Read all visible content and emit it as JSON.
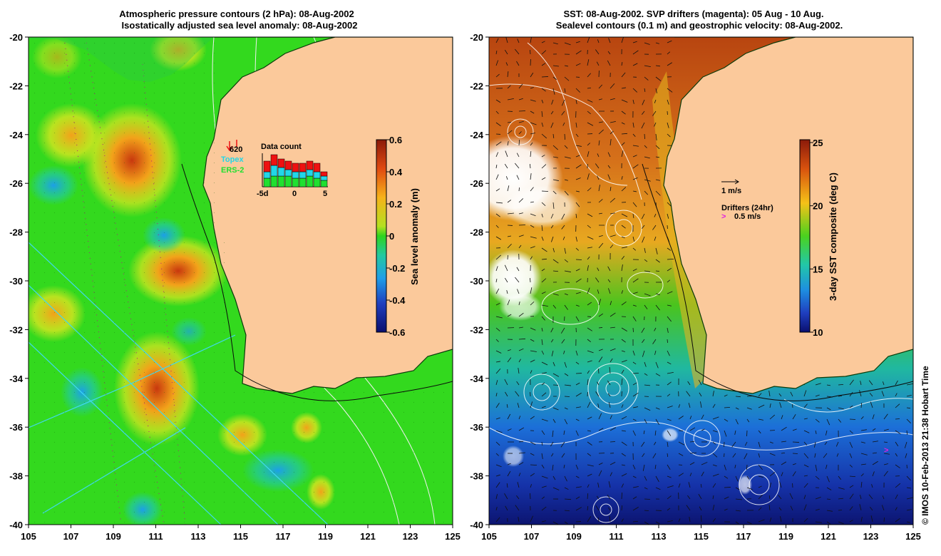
{
  "left_map": {
    "title_line1": "Atmospheric pressure contours (2 hPa): 08-Aug-2002",
    "title_line2": "Isostatically adjusted sea level anomaly: 08-Aug-2002",
    "colorbar_label": "Sea level anomaly (m)",
    "colorbar_ticks": [
      "0.6",
      "0.4",
      "0.2",
      "0",
      "-0.2",
      "-0.4",
      "-0.6"
    ],
    "inset": {
      "title": "Data count",
      "count": "620",
      "legend_topex": "Topex",
      "legend_ers2": "ERS-2",
      "x_ticks": [
        "-5d",
        "0",
        "5"
      ],
      "bars_ers2": [
        4,
        5,
        5,
        5,
        4,
        4,
        5,
        4,
        3
      ],
      "bars_topex": [
        3,
        5,
        4,
        3,
        3,
        3,
        3,
        3,
        2
      ],
      "bars_other": [
        5,
        5,
        4,
        4,
        4,
        4,
        4,
        4,
        2
      ]
    }
  },
  "right_map": {
    "title_line1": "SST: 08-Aug-2002. SVP drifters (magenta): 05 Aug - 10 Aug.",
    "title_line2": "Sealevel contours (0.1 m) and geostrophic velocity: 08-Aug-2002.",
    "colorbar_label": "3-day SST composite (deg C)",
    "colorbar_ticks": [
      "25",
      "20",
      "15",
      "10"
    ],
    "velocity_label": "1 m/s",
    "drifters_label": "Drifters (24hr)",
    "drifters_speed": "0.5 m/s",
    "drifter_symbol": ">"
  },
  "axes": {
    "lat_ticks": [
      "-20",
      "-22",
      "-24",
      "-26",
      "-28",
      "-30",
      "-32",
      "-34",
      "-36",
      "-38",
      "-40"
    ],
    "lon_ticks": [
      "105",
      "107",
      "109",
      "111",
      "113",
      "115",
      "117",
      "119",
      "121",
      "123",
      "125"
    ]
  },
  "credit": "© IMOS 10-Feb-2013 21:38 Hobart Time",
  "colors": {
    "land": "#fbc99b",
    "sla_background": "#33d91e",
    "arrow_topex": "#22d6e8",
    "arrow_ers2": "#20e030",
    "drifter": "#e020e0",
    "bar_red": "#ee1111"
  }
}
